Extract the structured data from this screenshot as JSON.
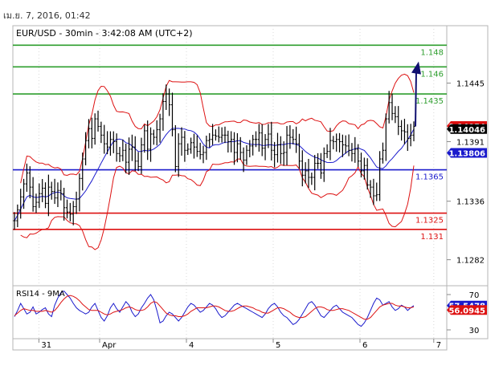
{
  "header": {
    "timestamp": "เม.ย. 7, 2016, 01:42"
  },
  "chart_data": [
    {
      "type": "line",
      "title": "EUR/USD - 30min - 3:42:08 AM (UTC+2)",
      "ylim": [
        1.1258,
        1.1498
      ],
      "y_ticks": [
        "1.1445",
        "1.1391",
        "1.1336",
        "1.1282"
      ],
      "horizontal_lines": [
        {
          "label": "1.148",
          "value": 1.148,
          "color": "#2e9e2e",
          "label_color": "#2e9e2e"
        },
        {
          "label": "1.146",
          "value": 1.146,
          "color": "#2e9e2e",
          "label_color": "#2e9e2e"
        },
        {
          "label": "1.1435",
          "value": 1.1435,
          "color": "#2e9e2e",
          "label_color": "#2e9e2e"
        },
        {
          "label": "1.1365",
          "value": 1.1365,
          "color": "#1a1acc",
          "label_color": "#1a1acc"
        },
        {
          "label": "1.1325",
          "value": 1.1325,
          "color": "#dd1111",
          "label_color": "#dd1111"
        },
        {
          "label": "1.131",
          "value": 1.131,
          "color": "#dd1111",
          "label_color": "#dd1111"
        }
      ],
      "price_tags": [
        {
          "label": "1.14054",
          "value": 1.14054,
          "bg": "#dd1111",
          "fg": "#ffffff"
        },
        {
          "label": "1.14046",
          "value": 1.14026,
          "bg": "#000000",
          "fg": "#ffffff"
        },
        {
          "label": "1.13806",
          "value": 1.13806,
          "bg": "#1a1acc",
          "fg": "#ffffff"
        }
      ],
      "series": [
        {
          "type": "price",
          "color": "#000000",
          "values": [
            1.1318,
            1.1328,
            1.134,
            1.1352,
            1.1362,
            1.1349,
            1.1331,
            1.1335,
            1.1343,
            1.1348,
            1.1334,
            1.1349,
            1.1345,
            1.1339,
            1.1346,
            1.1343,
            1.133,
            1.1326,
            1.1324,
            1.1331,
            1.1338,
            1.1357,
            1.1375,
            1.1392,
            1.1403,
            1.1394,
            1.1412,
            1.1405,
            1.1397,
            1.1389,
            1.1386,
            1.1393,
            1.1391,
            1.138,
            1.1378,
            1.1383,
            1.1372,
            1.1384,
            1.1386,
            1.1373,
            1.1368,
            1.1388,
            1.1401,
            1.1384,
            1.1398,
            1.1395,
            1.1402,
            1.1412,
            1.1428,
            1.1435,
            1.1425,
            1.1402,
            1.1368,
            1.1389,
            1.1395,
            1.1383,
            1.1384,
            1.139,
            1.1386,
            1.1382,
            1.1379,
            1.1381,
            1.1392,
            1.1393,
            1.1397,
            1.1396,
            1.1395,
            1.1397,
            1.1397,
            1.1391,
            1.1393,
            1.1381,
            1.1389,
            1.1381,
            1.1374,
            1.1383,
            1.1387,
            1.1393,
            1.1393,
            1.1399,
            1.1385,
            1.1393,
            1.1398,
            1.1383,
            1.1379,
            1.1388,
            1.138,
            1.1381,
            1.1397,
            1.1395,
            1.1393,
            1.1389,
            1.1373,
            1.136,
            1.1364,
            1.1358,
            1.1358,
            1.1371,
            1.1371,
            1.1362,
            1.138,
            1.1382,
            1.1392,
            1.1391,
            1.1393,
            1.1391,
            1.1388,
            1.1387,
            1.1383,
            1.138,
            1.1384,
            1.1373,
            1.1364,
            1.1369,
            1.1351,
            1.1349,
            1.1341,
            1.1342,
            1.1375,
            1.1383,
            1.1412,
            1.1427,
            1.1417,
            1.1414,
            1.1405,
            1.1401,
            1.14,
            1.1394,
            1.1397,
            1.1405
          ]
        },
        {
          "name": "MA",
          "color": "#1a1acc"
        },
        {
          "name": "Bollinger Bands",
          "color": "#dd1111"
        }
      ],
      "projection_arrow": {
        "from": 1.1405,
        "to": 1.1462,
        "color": "#101070"
      },
      "x_tick_labels": [
        "31",
        "Apr",
        "4",
        "5",
        "6",
        "7"
      ]
    },
    {
      "type": "line",
      "title": "RSI14 - 9MA",
      "ylim": [
        20,
        80
      ],
      "y_ticks": [
        "70",
        "30"
      ],
      "value_tags": [
        {
          "label": "57.5478",
          "value": 57.55,
          "bg": "#1a1acc",
          "fg": "#ffffff"
        },
        {
          "label": "56.0945",
          "value": 52.5,
          "bg": "#dd1111",
          "fg": "#ffffff"
        }
      ],
      "series": [
        {
          "name": "RSI14",
          "color": "#1a1acc",
          "values": [
            45,
            52,
            60,
            54,
            48,
            50,
            56,
            48,
            50,
            53,
            55,
            48,
            45,
            58,
            66,
            72,
            74,
            70,
            66,
            60,
            55,
            52,
            50,
            48,
            50,
            56,
            60,
            52,
            44,
            40,
            46,
            55,
            60,
            54,
            50,
            56,
            62,
            58,
            50,
            45,
            48,
            55,
            60,
            66,
            70,
            64,
            52,
            38,
            40,
            46,
            50,
            48,
            44,
            40,
            44,
            50,
            56,
            60,
            58,
            54,
            50,
            52,
            56,
            60,
            58,
            54,
            48,
            44,
            46,
            50,
            54,
            58,
            60,
            58,
            56,
            54,
            52,
            50,
            48,
            46,
            44,
            48,
            54,
            58,
            60,
            56,
            50,
            46,
            44,
            40,
            36,
            38,
            42,
            48,
            54,
            60,
            62,
            58,
            52,
            46,
            44,
            48,
            52,
            56,
            58,
            54,
            50,
            48,
            46,
            44,
            40,
            36,
            34,
            38,
            44,
            52,
            60,
            66,
            64,
            58,
            60,
            62,
            56,
            52,
            54,
            58,
            56,
            52,
            55,
            57.5
          ]
        },
        {
          "name": "9MA",
          "color": "#dd1111",
          "values": [
            46,
            49,
            52,
            54,
            53,
            52,
            52,
            51,
            51,
            51,
            52,
            51,
            50,
            52,
            56,
            61,
            65,
            68,
            69,
            68,
            66,
            63,
            59,
            56,
            53,
            52,
            52,
            52,
            50,
            48,
            47,
            48,
            50,
            51,
            52,
            53,
            55,
            56,
            55,
            53,
            52,
            52,
            53,
            56,
            60,
            62,
            61,
            57,
            53,
            49,
            47,
            46,
            46,
            45,
            45,
            46,
            48,
            51,
            53,
            55,
            55,
            55,
            55,
            56,
            57,
            57,
            56,
            54,
            52,
            51,
            51,
            52,
            54,
            56,
            57,
            57,
            56,
            55,
            53,
            52,
            50,
            49,
            49,
            51,
            53,
            55,
            55,
            54,
            52,
            50,
            47,
            45,
            44,
            44,
            45,
            48,
            51,
            54,
            56,
            56,
            55,
            53,
            52,
            52,
            53,
            54,
            54,
            53,
            52,
            50,
            48,
            46,
            44,
            42,
            42,
            44,
            48,
            52,
            56,
            58,
            59,
            60,
            60,
            58,
            57,
            57,
            56,
            55,
            55,
            56.1
          ]
        }
      ]
    }
  ]
}
